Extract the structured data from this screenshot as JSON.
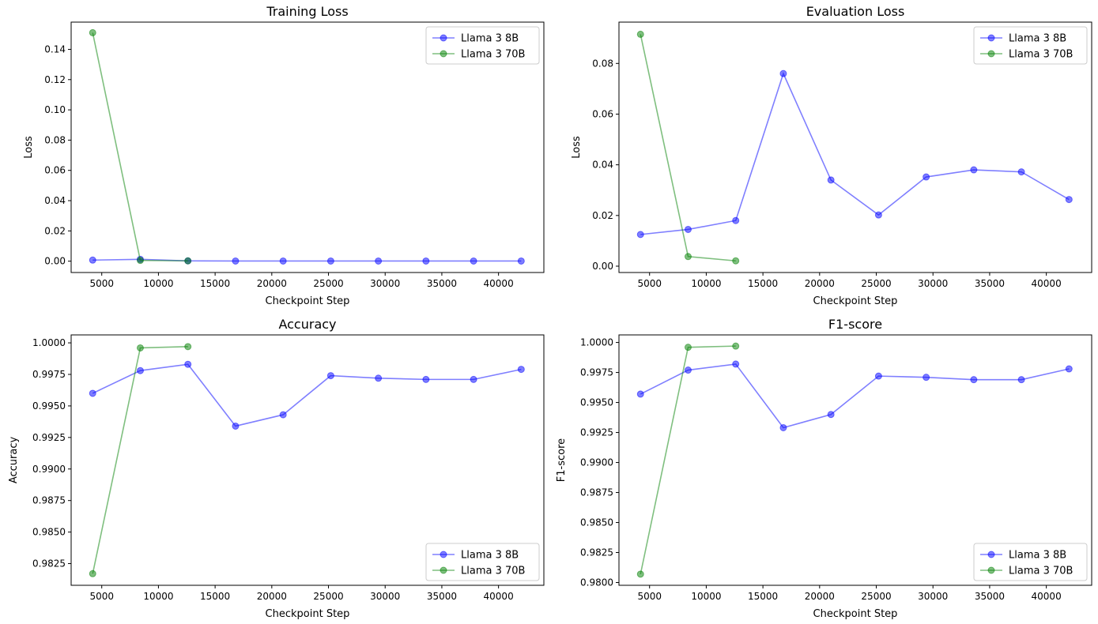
{
  "chart_data": [
    {
      "type": "line",
      "title": "Training Loss",
      "xlabel": "Checkpoint Step",
      "ylabel": "Loss",
      "xlim": [
        2300,
        44000
      ],
      "ylim": [
        -0.0075,
        0.158
      ],
      "xticks": [
        5000,
        10000,
        15000,
        20000,
        25000,
        30000,
        35000,
        40000
      ],
      "yticks": [
        0.0,
        0.02,
        0.04,
        0.06,
        0.08,
        0.1,
        0.12,
        0.14
      ],
      "ytick_labels": [
        "0.00",
        "0.02",
        "0.04",
        "0.06",
        "0.08",
        "0.10",
        "0.12",
        "0.14"
      ],
      "legend": "top-right",
      "series": [
        {
          "name": "Llama 3 8B",
          "color": "#0000ff",
          "x": [
            4200,
            8400,
            12600,
            16800,
            21000,
            25200,
            29400,
            33600,
            37800,
            42000
          ],
          "y": [
            0.0007,
            0.0012,
            0.0002,
            0.0001,
            0.0001,
            0.0001,
            0.0001,
            0.0001,
            0.0001,
            0.0001
          ]
        },
        {
          "name": "Llama 3 70B",
          "color": "#008000",
          "x": [
            4200,
            8400,
            12600
          ],
          "y": [
            0.151,
            0.0005,
            0.0002
          ]
        }
      ]
    },
    {
      "type": "line",
      "title": "Evaluation Loss",
      "xlabel": "Checkpoint Step",
      "ylabel": "Loss",
      "xlim": [
        2300,
        44000
      ],
      "ylim": [
        -0.0025,
        0.0963
      ],
      "xticks": [
        5000,
        10000,
        15000,
        20000,
        25000,
        30000,
        35000,
        40000
      ],
      "yticks": [
        0.0,
        0.02,
        0.04,
        0.06,
        0.08
      ],
      "ytick_labels": [
        "0.00",
        "0.02",
        "0.04",
        "0.06",
        "0.08"
      ],
      "legend": "top-right",
      "series": [
        {
          "name": "Llama 3 8B",
          "color": "#0000ff",
          "x": [
            4200,
            8400,
            12600,
            16800,
            21000,
            25200,
            29400,
            33600,
            37800,
            42000
          ],
          "y": [
            0.0125,
            0.0145,
            0.018,
            0.076,
            0.034,
            0.0202,
            0.0352,
            0.038,
            0.0372,
            0.0263
          ]
        },
        {
          "name": "Llama 3 70B",
          "color": "#008000",
          "x": [
            4200,
            8400,
            12600
          ],
          "y": [
            0.0915,
            0.0038,
            0.0021
          ]
        }
      ]
    },
    {
      "type": "line",
      "title": "Accuracy",
      "xlabel": "Checkpoint Step",
      "ylabel": "Accuracy",
      "xlim": [
        2300,
        44000
      ],
      "ylim": [
        0.98078,
        1.00063
      ],
      "xticks": [
        5000,
        10000,
        15000,
        20000,
        25000,
        30000,
        35000,
        40000
      ],
      "yticks": [
        0.9825,
        0.985,
        0.9875,
        0.99,
        0.9925,
        0.995,
        0.9975,
        1.0
      ],
      "ytick_labels": [
        "0.9825",
        "0.9850",
        "0.9875",
        "0.9900",
        "0.9925",
        "0.9950",
        "0.9975",
        "1.0000"
      ],
      "legend": "bottom-right",
      "series": [
        {
          "name": "Llama 3 8B",
          "color": "#0000ff",
          "x": [
            4200,
            8400,
            12600,
            16800,
            21000,
            25200,
            29400,
            33600,
            37800,
            42000
          ],
          "y": [
            0.996,
            0.9978,
            0.9983,
            0.9934,
            0.9943,
            0.9974,
            0.9972,
            0.9971,
            0.9971,
            0.9979
          ]
        },
        {
          "name": "Llama 3 70B",
          "color": "#008000",
          "x": [
            4200,
            8400,
            12600
          ],
          "y": [
            0.9817,
            0.9996,
            0.9997
          ]
        }
      ]
    },
    {
      "type": "line",
      "title": "F1-score",
      "xlabel": "Checkpoint Step",
      "ylabel": "F1-score",
      "xlim": [
        2300,
        44000
      ],
      "ylim": [
        0.97977,
        1.00063
      ],
      "xticks": [
        5000,
        10000,
        15000,
        20000,
        25000,
        30000,
        35000,
        40000
      ],
      "yticks": [
        0.98,
        0.9825,
        0.985,
        0.9875,
        0.99,
        0.9925,
        0.995,
        0.9975,
        1.0
      ],
      "ytick_labels": [
        "0.9800",
        "0.9825",
        "0.9850",
        "0.9875",
        "0.9900",
        "0.9925",
        "0.9950",
        "0.9975",
        "1.0000"
      ],
      "legend": "bottom-right",
      "series": [
        {
          "name": "Llama 3 8B",
          "color": "#0000ff",
          "x": [
            4200,
            8400,
            12600,
            16800,
            21000,
            25200,
            29400,
            33600,
            37800,
            42000
          ],
          "y": [
            0.9957,
            0.9977,
            0.9982,
            0.9929,
            0.994,
            0.9972,
            0.9971,
            0.9969,
            0.9969,
            0.9978
          ]
        },
        {
          "name": "Llama 3 70B",
          "color": "#008000",
          "x": [
            4200,
            8400,
            12600
          ],
          "y": [
            0.9807,
            0.9996,
            0.9997
          ]
        }
      ]
    }
  ]
}
